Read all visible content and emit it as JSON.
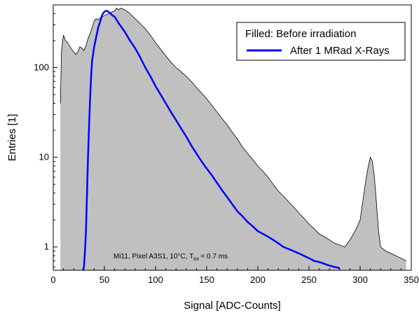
{
  "chart_data": {
    "type": "area",
    "xlabel": "Signal [ADC-Counts]",
    "ylabel": "Entries [1]",
    "xlim": [
      0,
      350
    ],
    "ylim": [
      0.55,
      500
    ],
    "yscale": "log",
    "xticks": [
      0,
      50,
      100,
      150,
      200,
      250,
      300,
      350
    ],
    "xtick_labels": [
      "0",
      "50",
      "100",
      "150",
      "200",
      "250",
      "300",
      "350"
    ],
    "yticks": [
      1,
      10,
      100
    ],
    "ytick_labels": [
      "1",
      "10",
      "100"
    ],
    "grid": false,
    "legend_position": "top-right",
    "annotation": {
      "main": "Mi11, Pixel A3S1, 10°C, T",
      "subscript": "int",
      "tail": " = 0.7 ms"
    },
    "series": [
      {
        "name": "Filled:  Before irradiation",
        "style": "filled",
        "fill_color": "#c0c0c0",
        "line_color": "#000000",
        "x": [
          7,
          8,
          9,
          10,
          12,
          14,
          16,
          18,
          20,
          22,
          24,
          26,
          28,
          30,
          32,
          34,
          36,
          38,
          40,
          42,
          44,
          46,
          48,
          50,
          52,
          54,
          56,
          58,
          60,
          62,
          64,
          66,
          68,
          70,
          75,
          80,
          85,
          90,
          95,
          100,
          105,
          110,
          115,
          120,
          125,
          130,
          135,
          140,
          145,
          150,
          155,
          160,
          165,
          170,
          175,
          180,
          185,
          190,
          195,
          200,
          205,
          210,
          215,
          220,
          225,
          230,
          235,
          240,
          245,
          250,
          255,
          260,
          265,
          270,
          275,
          280,
          285,
          290,
          295,
          300,
          303,
          306,
          308,
          310,
          312,
          314,
          316,
          318,
          320,
          325,
          330,
          335,
          340,
          345
        ],
        "y": [
          40,
          150,
          190,
          230,
          200,
          190,
          175,
          160,
          150,
          140,
          150,
          170,
          165,
          155,
          175,
          210,
          240,
          280,
          330,
          350,
          340,
          360,
          370,
          380,
          390,
          400,
          410,
          420,
          430,
          460,
          440,
          460,
          450,
          440,
          400,
          350,
          310,
          270,
          230,
          190,
          160,
          135,
          115,
          100,
          90,
          80,
          70,
          60,
          52,
          45,
          38,
          32,
          27,
          23,
          19,
          16,
          13,
          11,
          9.5,
          8,
          7,
          6,
          5,
          4.2,
          3.7,
          3.2,
          2.8,
          2.4,
          2.1,
          1.8,
          1.6,
          1.4,
          1.3,
          1.2,
          1.1,
          1.05,
          1.0,
          1.2,
          1.5,
          2.0,
          3.5,
          6.0,
          8.0,
          10.0,
          9.0,
          6.0,
          3.0,
          1.5,
          1.0,
          0.9,
          0.85,
          0.8,
          0.75,
          0.7
        ]
      },
      {
        "name": "After 1 MRad X-Rays",
        "style": "line",
        "line_color": "#0000ff",
        "x": [
          29,
          30,
          31,
          32,
          33,
          34,
          35,
          36,
          37,
          38,
          40,
          42,
          44,
          46,
          48,
          50,
          52,
          54,
          56,
          58,
          60,
          62,
          65,
          70,
          75,
          80,
          85,
          90,
          95,
          100,
          105,
          110,
          115,
          120,
          125,
          130,
          135,
          140,
          145,
          150,
          155,
          160,
          165,
          170,
          175,
          180,
          185,
          190,
          195,
          200,
          205,
          210,
          215,
          220,
          225,
          230,
          235,
          240,
          245,
          250,
          255,
          260,
          265,
          270,
          275,
          280
        ],
        "y": [
          0.55,
          0.6,
          0.9,
          1.5,
          4,
          10,
          22,
          45,
          80,
          120,
          170,
          220,
          280,
          330,
          390,
          420,
          430,
          420,
          400,
          380,
          370,
          340,
          300,
          250,
          200,
          165,
          130,
          100,
          80,
          62,
          50,
          40,
          32,
          26,
          21,
          17,
          13.5,
          11,
          9,
          7.5,
          6.3,
          5.2,
          4.3,
          3.6,
          3.0,
          2.5,
          2.2,
          1.9,
          1.7,
          1.5,
          1.4,
          1.3,
          1.2,
          1.1,
          1.0,
          0.95,
          0.9,
          0.85,
          0.8,
          0.75,
          0.7,
          0.68,
          0.65,
          0.62,
          0.6,
          0.58
        ]
      }
    ]
  }
}
